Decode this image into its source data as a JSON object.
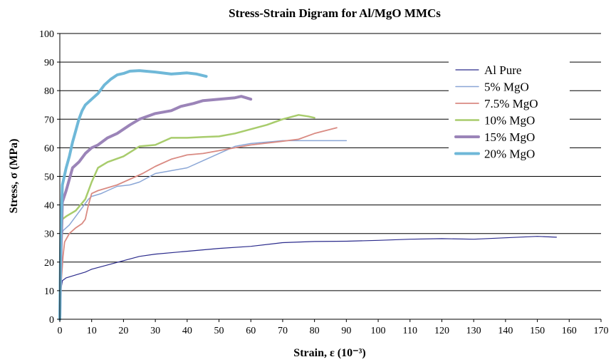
{
  "chart_data": {
    "type": "line",
    "title": "Stress-Strain Digram for Al/MgO MMCs",
    "xlabel": "Strain, ε (10⁻³)",
    "ylabel": "Stress, σ (MPa)",
    "xlim": [
      0,
      170
    ],
    "ylim": [
      0,
      100
    ],
    "xticks": [
      "0",
      "10",
      "20",
      "30",
      "40",
      "50",
      "60",
      "70",
      "80",
      "90",
      "100",
      "110",
      "120",
      "130",
      "140",
      "150",
      "160",
      "170"
    ],
    "yticks": [
      "0",
      "10",
      "20",
      "30",
      "40",
      "50",
      "60",
      "70",
      "80",
      "90",
      "100"
    ],
    "grid": "horizontal",
    "legend_position": "right",
    "series": [
      {
        "name": "Al Pure",
        "color": "#2b2b8c",
        "width": 1.2,
        "points": [
          [
            0,
            0
          ],
          [
            0.3,
            10
          ],
          [
            0.8,
            13.5
          ],
          [
            2,
            14.5
          ],
          [
            5,
            15.5
          ],
          [
            8,
            16.5
          ],
          [
            10,
            17.5
          ],
          [
            15,
            19
          ],
          [
            20,
            20.5
          ],
          [
            25,
            22
          ],
          [
            30,
            22.8
          ],
          [
            40,
            23.8
          ],
          [
            50,
            24.8
          ],
          [
            60,
            25.5
          ],
          [
            70,
            26.8
          ],
          [
            80,
            27.2
          ],
          [
            90,
            27.3
          ],
          [
            100,
            27.6
          ],
          [
            110,
            28
          ],
          [
            120,
            28.2
          ],
          [
            130,
            28
          ],
          [
            140,
            28.5
          ],
          [
            150,
            29
          ],
          [
            156,
            28.7
          ]
        ]
      },
      {
        "name": "5% MgO",
        "color": "#8aa6d6",
        "width": 1.5,
        "points": [
          [
            0,
            0
          ],
          [
            0.5,
            28
          ],
          [
            1,
            31
          ],
          [
            3,
            33
          ],
          [
            5,
            36
          ],
          [
            7,
            39
          ],
          [
            9,
            42
          ],
          [
            10,
            43
          ],
          [
            13,
            44
          ],
          [
            15,
            45
          ],
          [
            18,
            46.5
          ],
          [
            22,
            47
          ],
          [
            25,
            48
          ],
          [
            30,
            51
          ],
          [
            35,
            52
          ],
          [
            40,
            53
          ],
          [
            45,
            55.5
          ],
          [
            50,
            58
          ],
          [
            55,
            60.5
          ],
          [
            60,
            61.5
          ],
          [
            70,
            62.5
          ],
          [
            80,
            62.5
          ],
          [
            90,
            62.5
          ]
        ]
      },
      {
        "name": "7.5% MgO",
        "color": "#d98a82",
        "width": 1.8,
        "points": [
          [
            0,
            0
          ],
          [
            0.5,
            14
          ],
          [
            1,
            22
          ],
          [
            1.5,
            27
          ],
          [
            3,
            30
          ],
          [
            5,
            32
          ],
          [
            7,
            33.5
          ],
          [
            8,
            35
          ],
          [
            9,
            40
          ],
          [
            10,
            44
          ],
          [
            12,
            45
          ],
          [
            15,
            46
          ],
          [
            18,
            47
          ],
          [
            22,
            49
          ],
          [
            26,
            51
          ],
          [
            30,
            53.5
          ],
          [
            35,
            56
          ],
          [
            40,
            57.5
          ],
          [
            45,
            58
          ],
          [
            50,
            59
          ],
          [
            55,
            60
          ],
          [
            60,
            61
          ],
          [
            70,
            62.3
          ],
          [
            75,
            63
          ],
          [
            80,
            65
          ],
          [
            87,
            67
          ]
        ]
      },
      {
        "name": "10% MgO",
        "color": "#a8cc6c",
        "width": 2.5,
        "points": [
          [
            0,
            0
          ],
          [
            0.4,
            20
          ],
          [
            0.8,
            35
          ],
          [
            2,
            36
          ],
          [
            5,
            38
          ],
          [
            8,
            42
          ],
          [
            10,
            48
          ],
          [
            12,
            53
          ],
          [
            15,
            55
          ],
          [
            20,
            57
          ],
          [
            25,
            60.5
          ],
          [
            30,
            61
          ],
          [
            35,
            63.5
          ],
          [
            40,
            63.5
          ],
          [
            45,
            63.8
          ],
          [
            50,
            64
          ],
          [
            55,
            65
          ],
          [
            60,
            66.5
          ],
          [
            65,
            68
          ],
          [
            70,
            70
          ],
          [
            75,
            71.5
          ],
          [
            78,
            71
          ],
          [
            80,
            70.5
          ]
        ]
      },
      {
        "name": "15% MgO",
        "color": "#9b84b8",
        "width": 4,
        "points": [
          [
            0,
            0
          ],
          [
            0.4,
            25
          ],
          [
            0.8,
            41
          ],
          [
            2,
            45
          ],
          [
            3,
            49
          ],
          [
            4,
            53
          ],
          [
            6,
            55
          ],
          [
            8,
            58
          ],
          [
            10,
            60
          ],
          [
            12,
            61
          ],
          [
            15,
            63.5
          ],
          [
            18,
            65
          ],
          [
            22,
            68
          ],
          [
            25,
            70
          ],
          [
            30,
            72
          ],
          [
            35,
            73
          ],
          [
            38,
            74.5
          ],
          [
            42,
            75.5
          ],
          [
            45,
            76.5
          ],
          [
            50,
            77
          ],
          [
            55,
            77.5
          ],
          [
            57,
            78
          ],
          [
            60,
            77
          ]
        ]
      },
      {
        "name": "20% MgO",
        "color": "#6fb8d8",
        "width": 4,
        "points": [
          [
            0,
            0
          ],
          [
            0.3,
            30
          ],
          [
            0.8,
            47
          ],
          [
            2,
            53
          ],
          [
            3,
            57
          ],
          [
            4,
            62
          ],
          [
            5,
            66
          ],
          [
            6,
            70
          ],
          [
            7,
            73
          ],
          [
            8,
            75
          ],
          [
            10,
            77
          ],
          [
            12,
            79
          ],
          [
            14,
            82
          ],
          [
            16,
            84
          ],
          [
            18,
            85.5
          ],
          [
            20,
            86
          ],
          [
            22,
            86.8
          ],
          [
            25,
            87
          ],
          [
            30,
            86.5
          ],
          [
            35,
            85.8
          ],
          [
            40,
            86.2
          ],
          [
            43,
            85.8
          ],
          [
            46,
            85
          ]
        ]
      }
    ]
  }
}
